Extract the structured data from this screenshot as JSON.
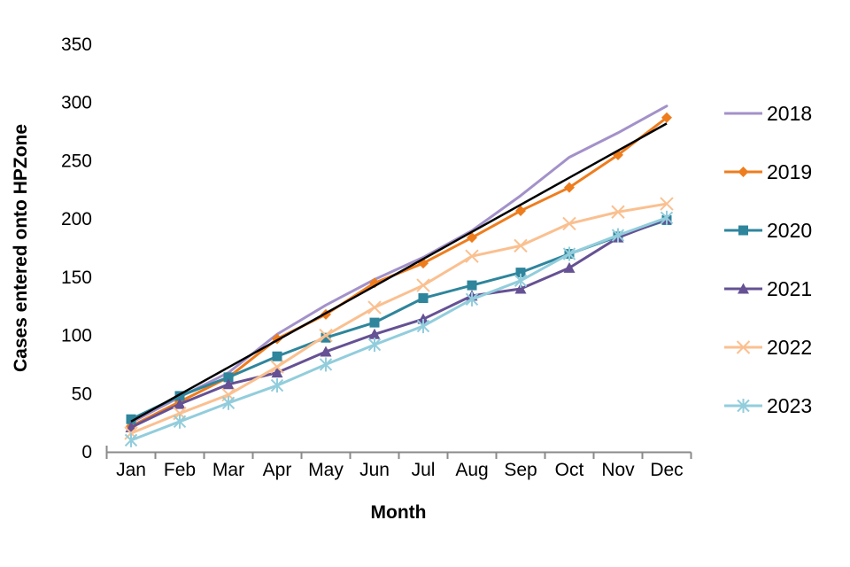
{
  "chart_data": {
    "type": "line",
    "title": "",
    "xlabel": "Month",
    "ylabel": "Cases entered onto HPZone",
    "categories": [
      "Jan",
      "Feb",
      "Mar",
      "Apr",
      "May",
      "Jun",
      "Jul",
      "Aug",
      "Sep",
      "Oct",
      "Nov",
      "Dec"
    ],
    "ylim": [
      0,
      350
    ],
    "yticks": [
      0,
      50,
      100,
      150,
      200,
      250,
      300,
      350
    ],
    "grid": false,
    "legend_position": "right",
    "series": [
      {
        "name": "2018",
        "color": "#a391c9",
        "marker": "none",
        "values": [
          25,
          47,
          68,
          101,
          126,
          148,
          167,
          190,
          220,
          253,
          274,
          297
        ]
      },
      {
        "name": "2019",
        "color": "#ee7d1e",
        "marker": "diamond",
        "values": [
          22,
          43,
          64,
          97,
          118,
          145,
          162,
          184,
          207,
          227,
          255,
          287
        ]
      },
      {
        "name": "2020",
        "color": "#2e859c",
        "marker": "square",
        "values": [
          28,
          48,
          64,
          82,
          98,
          111,
          132,
          143,
          154,
          170,
          185,
          199
        ]
      },
      {
        "name": "2021",
        "color": "#655193",
        "marker": "triangle",
        "values": [
          21,
          41,
          58,
          68,
          86,
          101,
          114,
          134,
          140,
          158,
          184,
          200
        ]
      },
      {
        "name": "2022",
        "color": "#fac090",
        "marker": "x",
        "values": [
          16,
          33,
          49,
          73,
          100,
          124,
          143,
          168,
          177,
          196,
          206,
          213
        ]
      },
      {
        "name": "2023",
        "color": "#92cddc",
        "marker": "asterisk",
        "values": [
          10,
          26,
          42,
          57,
          75,
          92,
          108,
          131,
          147,
          170,
          186,
          201
        ]
      }
    ],
    "trendline": {
      "color": "#000000",
      "start_value": 26,
      "end_value": 282
    },
    "axis_color": "#8a8a8a"
  }
}
